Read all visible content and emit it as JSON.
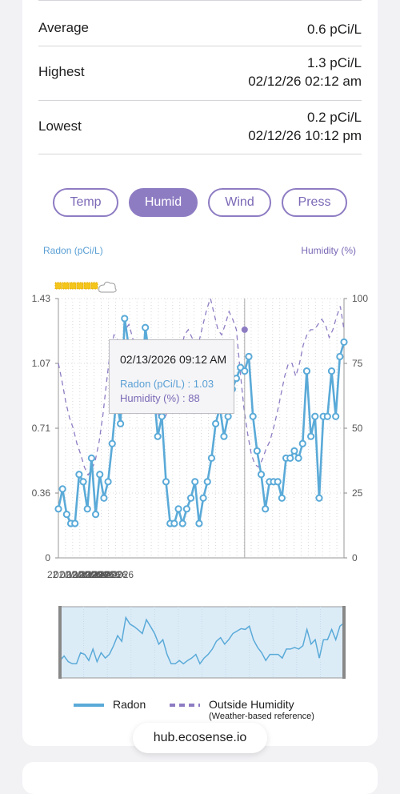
{
  "stats": [
    {
      "label": "Average",
      "value": "0.6 pCi/L",
      "time": ""
    },
    {
      "label": "Highest",
      "value": "1.3 pCi/L",
      "time": "02/12/26 02:12 am"
    },
    {
      "label": "Lowest",
      "value": "0.2 pCi/L",
      "time": "02/12/26 10:12 pm"
    }
  ],
  "tabs": [
    "Temp",
    "Humid",
    "Wind",
    "Press"
  ],
  "active_tab": "Humid",
  "tooltip": {
    "time": "02/13/2026 09:12 AM",
    "radon": "Radon (pCi/L) : 1.03",
    "humidity": "Humidity (%) : 88"
  },
  "legend": {
    "radon": "Radon",
    "humidity": "Outside Humidity",
    "humidity_note": "(Weather-based reference)"
  },
  "url": "hub.ecosense.io",
  "colors": {
    "radon": "#5aaad8",
    "humidity": "#8e7cc3",
    "accent": "#8e7cc3"
  },
  "chart_data": {
    "type": "line",
    "ylabel": "Radon (pCi/L)",
    "y2label": "Humidity (%)",
    "ylim": [
      0,
      1.43
    ],
    "y2lim": [
      0,
      100
    ],
    "yticks": [
      "0",
      "0.36",
      "0.71",
      "1.07",
      "1.43"
    ],
    "y2ticks": [
      "0",
      "25",
      "50",
      "75",
      "100"
    ],
    "xtick_labels": [
      "22",
      "02/12/2026",
      "02/12/2026",
      "02/12/2026",
      "02/12/2026",
      "02/12/2026",
      "02/12/2026",
      "22",
      "14"
    ],
    "grid": true,
    "series": [
      {
        "name": "Radon",
        "axis": "left",
        "values": [
          0.27,
          0.38,
          0.24,
          0.19,
          0.19,
          0.46,
          0.42,
          0.27,
          0.55,
          0.24,
          0.46,
          0.33,
          0.42,
          0.63,
          0.88,
          0.74,
          1.32,
          1.16,
          1.1,
          1.02,
          0.93,
          1.27,
          1.1,
          0.93,
          0.67,
          0.78,
          0.42,
          0.19,
          0.19,
          0.27,
          0.19,
          0.27,
          0.33,
          0.42,
          0.19,
          0.33,
          0.42,
          0.55,
          0.74,
          0.83,
          0.67,
          0.78,
          0.93,
          0.99,
          1.05,
          1.03,
          1.11,
          0.78,
          0.59,
          0.46,
          0.27,
          0.42,
          0.42,
          0.42,
          0.33,
          0.55,
          0.55,
          0.59,
          0.55,
          0.63,
          1.03,
          0.67,
          0.78,
          0.33,
          0.78,
          0.78,
          1.03,
          0.78,
          1.11,
          1.19
        ]
      },
      {
        "name": "Outside Humidity",
        "axis": "right",
        "values": [
          75,
          68,
          60,
          54,
          50,
          44,
          40,
          35,
          32,
          34,
          38,
          45,
          55,
          68,
          80,
          86,
          84,
          82,
          88,
          90,
          85,
          78,
          70,
          65,
          63,
          60,
          58,
          55,
          52,
          55,
          60,
          66,
          74,
          80,
          86,
          88,
          85,
          82,
          84,
          90,
          96,
          100,
          94,
          88,
          86,
          90,
          95,
          92,
          88,
          72,
          58,
          48,
          40,
          36,
          35,
          38,
          42,
          45,
          50,
          56,
          63,
          70,
          75,
          75,
          70,
          75,
          82,
          86,
          88,
          88,
          90,
          92,
          90,
          85,
          88,
          93,
          97,
          88
        ]
      }
    ]
  }
}
